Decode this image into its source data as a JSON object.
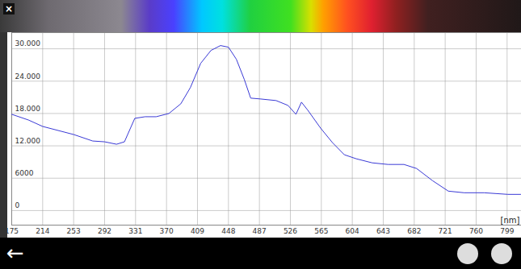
{
  "header": {
    "close_button": "×"
  },
  "chart_data": {
    "type": "line",
    "x_label": "[nm]",
    "color": "#3a3ad6",
    "grid": true,
    "x": [
      175,
      196,
      214,
      253,
      277,
      292,
      307,
      317,
      330,
      343,
      357,
      373,
      388,
      400,
      413,
      426,
      438,
      448,
      458,
      468,
      476,
      488,
      508,
      523,
      533,
      540,
      548,
      564,
      579,
      594,
      609,
      629,
      649,
      669,
      685,
      705,
      725,
      745,
      770,
      800,
      816
    ],
    "values": [
      17850,
      16800,
      15600,
      14100,
      12900,
      12750,
      12300,
      12750,
      17100,
      17400,
      17400,
      18000,
      19800,
      22800,
      27300,
      29700,
      30600,
      30300,
      28050,
      24300,
      20850,
      20700,
      20400,
      19500,
      17850,
      20100,
      18600,
      15300,
      12600,
      10350,
      9600,
      8850,
      8550,
      8550,
      7800,
      5550,
      3600,
      3300,
      3300,
      3000,
      3000
    ],
    "xlim": [
      175,
      817
    ],
    "ylim": [
      -2700,
      33000
    ],
    "xticks": [
      175,
      214,
      253,
      292,
      331,
      370,
      409,
      448,
      487,
      526,
      565,
      604,
      643,
      682,
      721,
      760,
      799
    ],
    "yticks": [
      0,
      6000,
      {
        "value": 12000,
        "label": "12.000"
      },
      {
        "value": 18000,
        "label": "18.000"
      },
      {
        "value": 24000,
        "label": "24.000"
      },
      {
        "value": 30000,
        "label": "30.000"
      }
    ]
  },
  "footer": {
    "back_button": "←"
  }
}
